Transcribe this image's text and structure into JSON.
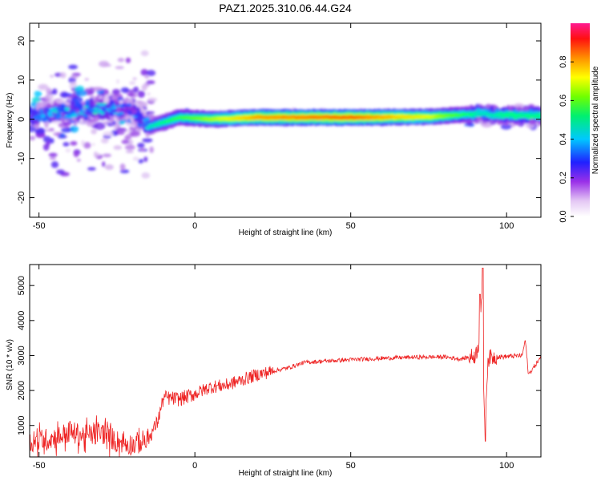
{
  "chart_data": [
    {
      "type": "heatmap",
      "title": "PAZ1.2025.310.06.44.G24",
      "xlabel": "Height of straight line (km)",
      "ylabel": "Frequency (Hz)",
      "xlim": [
        -53,
        111
      ],
      "ylim": [
        -25,
        24.5
      ],
      "xticks": [
        -50,
        0,
        50,
        100
      ],
      "yticks": [
        -20,
        -10,
        0,
        10,
        20
      ],
      "colorbar": {
        "label": "Normalized spectral amplitude",
        "range": [
          0,
          1
        ],
        "ticks": [
          0.0,
          0.2,
          0.4,
          0.6,
          0.8
        ],
        "colormap": [
          "#ffffff",
          "#d8b8f0",
          "#8a2be2",
          "#3030ff",
          "#00c8ff",
          "#00ff7f",
          "#60ff00",
          "#ffff00",
          "#ff8c00",
          "#ff0000",
          "#ff1493"
        ]
      },
      "description_points": [
        {
          "x": -50,
          "f": 1,
          "amp": 0.35
        },
        {
          "x": -40,
          "f": 2,
          "amp": 0.4
        },
        {
          "x": -30,
          "f": 3,
          "amp": 0.4
        },
        {
          "x": -20,
          "f": 2,
          "amp": 0.3
        },
        {
          "x": -15,
          "f": -2,
          "amp": 0.45
        },
        {
          "x": -5,
          "f": 0.5,
          "amp": 0.55
        },
        {
          "x": 5,
          "f": 0,
          "amp": 0.65
        },
        {
          "x": 20,
          "f": 0.5,
          "amp": 0.8
        },
        {
          "x": 50,
          "f": 0.5,
          "amp": 0.85
        },
        {
          "x": 75,
          "f": 0.6,
          "amp": 0.7
        },
        {
          "x": 92,
          "f": 1.5,
          "amp": 0.45
        },
        {
          "x": 100,
          "f": 1,
          "amp": 0.5
        },
        {
          "x": 110,
          "f": 1,
          "amp": 0.5
        }
      ]
    },
    {
      "type": "line",
      "title": "",
      "xlabel": "Height of straight line (km)",
      "ylabel": "SNR (10 * v/v)",
      "xlim": [
        -53,
        111
      ],
      "ylim": [
        100,
        5600
      ],
      "xticks": [
        -50,
        0,
        50,
        100
      ],
      "yticks": [
        1000,
        2000,
        3000,
        4000,
        5000
      ],
      "color": "#ee2222",
      "series": [
        {
          "name": "SNR",
          "x": [
            -53,
            -45,
            -40,
            -35,
            -30,
            -25,
            -20,
            -15,
            -12,
            -10,
            -5,
            0,
            5,
            10,
            15,
            20,
            25,
            30,
            35,
            40,
            50,
            60,
            70,
            80,
            85,
            88,
            90,
            91,
            92,
            93,
            94,
            95,
            100,
            105,
            106,
            107,
            111
          ],
          "values": [
            500,
            650,
            800,
            700,
            800,
            550,
            450,
            600,
            1100,
            1800,
            1750,
            1900,
            2100,
            2150,
            2300,
            2450,
            2550,
            2650,
            2800,
            2830,
            2880,
            2920,
            2950,
            2960,
            2900,
            2950,
            3000,
            3300,
            4600,
            900,
            2900,
            2950,
            2970,
            3000,
            3450,
            2450,
            2950
          ]
        }
      ]
    }
  ]
}
